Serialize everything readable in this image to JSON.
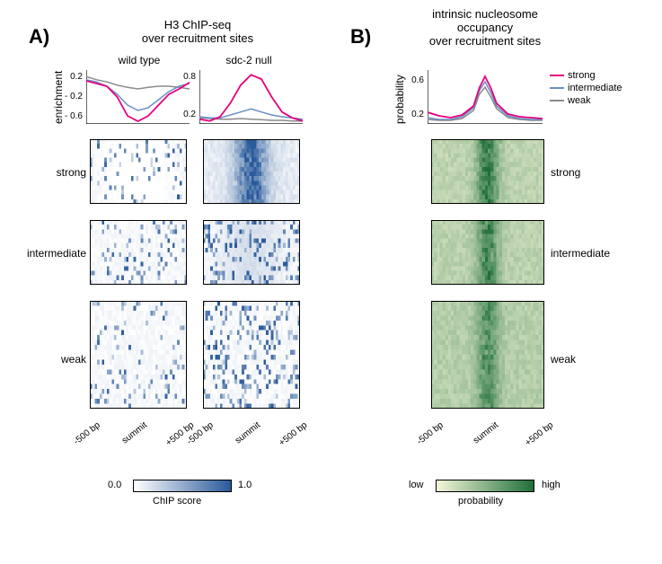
{
  "colors": {
    "strong": "#e6007e",
    "intermediate": "#6a8fc5",
    "weak": "#8a8a8a",
    "axis": "#000000",
    "blue_cmap_low": "#ffffff",
    "blue_cmap_high": "#2a5a9a",
    "green_cmap_low": "#f4f6d8",
    "green_cmap_high": "#1f6f3a"
  },
  "panelA": {
    "label": "A)",
    "title": "H3 ChIP-seq\nover recruitment sites",
    "columns": {
      "wt": {
        "label": "wild type",
        "yticks": [
          "0.2",
          "- 0.2",
          "- 0.6"
        ]
      },
      "sdc2": {
        "label": "sdc-2 null",
        "yticks": [
          "0.8",
          "0.2"
        ]
      }
    },
    "ylabel": "enrichment",
    "categories": [
      "strong",
      "intermediate",
      "weak"
    ],
    "heatmap_rows": {
      "strong": 14,
      "intermediate": 14,
      "weak": 22
    },
    "heatmap_cols": 40,
    "xticks": [
      "-500 bp",
      "summit",
      "+500 bp"
    ],
    "colorbar": {
      "min": "0.0",
      "max": "1.0",
      "label": "ChIP score"
    },
    "lines": {
      "wt": {
        "x": [
          -500,
          -400,
          -300,
          -200,
          -100,
          0,
          100,
          200,
          300,
          400,
          500
        ],
        "strong": [
          0.1,
          0.05,
          0.0,
          -0.2,
          -0.55,
          -0.65,
          -0.55,
          -0.35,
          -0.15,
          -0.05,
          0.07
        ],
        "intermediate": [
          0.12,
          0.08,
          0.0,
          -0.15,
          -0.35,
          -0.45,
          -0.4,
          -0.25,
          -0.1,
          0.0,
          0.05
        ],
        "weak": [
          0.18,
          0.12,
          0.08,
          0.02,
          -0.02,
          -0.05,
          -0.02,
          0.0,
          0.0,
          -0.02,
          -0.05
        ],
        "ylim": [
          -0.7,
          0.3
        ]
      },
      "sdc2": {
        "x": [
          -500,
          -400,
          -300,
          -200,
          -100,
          0,
          100,
          200,
          300,
          400,
          500
        ],
        "strong": [
          0.18,
          0.15,
          0.22,
          0.45,
          0.75,
          0.92,
          0.85,
          0.55,
          0.3,
          0.2,
          0.15
        ],
        "intermediate": [
          0.22,
          0.2,
          0.2,
          0.25,
          0.3,
          0.35,
          0.3,
          0.25,
          0.22,
          0.2,
          0.18
        ],
        "weak": [
          0.2,
          0.19,
          0.18,
          0.18,
          0.19,
          0.18,
          0.17,
          0.16,
          0.16,
          0.15,
          0.15
        ],
        "ylim": [
          0.1,
          1.0
        ]
      }
    }
  },
  "panelB": {
    "label": "B)",
    "title": "intrinsic nucleosome\noccupancy\nover recruitment sites",
    "ylabel": "probability",
    "yticks": [
      "0.6",
      "0.2"
    ],
    "legend": [
      {
        "label": "strong",
        "color": "#e6007e"
      },
      {
        "label": "intermediate",
        "color": "#6a8fc5"
      },
      {
        "label": "weak",
        "color": "#8a8a8a"
      }
    ],
    "categories": [
      "strong",
      "intermediate",
      "weak"
    ],
    "heatmap_rows": {
      "strong": 14,
      "intermediate": 14,
      "weak": 22
    },
    "heatmap_cols": 40,
    "xticks": [
      "-500 bp",
      "summit",
      "+500 bp"
    ],
    "colorbar": {
      "min": "low",
      "max": "high",
      "label": "probability"
    },
    "lines": {
      "x": [
        -500,
        -400,
        -300,
        -200,
        -100,
        -50,
        0,
        50,
        100,
        200,
        300,
        400,
        500
      ],
      "strong": [
        0.28,
        0.24,
        0.22,
        0.25,
        0.35,
        0.55,
        0.68,
        0.55,
        0.38,
        0.26,
        0.23,
        0.22,
        0.21
      ],
      "intermediate": [
        0.22,
        0.2,
        0.2,
        0.23,
        0.33,
        0.52,
        0.62,
        0.5,
        0.35,
        0.24,
        0.21,
        0.2,
        0.2
      ],
      "weak": [
        0.2,
        0.19,
        0.19,
        0.21,
        0.3,
        0.48,
        0.56,
        0.45,
        0.32,
        0.22,
        0.2,
        0.19,
        0.19
      ],
      "ylim": [
        0.15,
        0.75
      ]
    }
  }
}
